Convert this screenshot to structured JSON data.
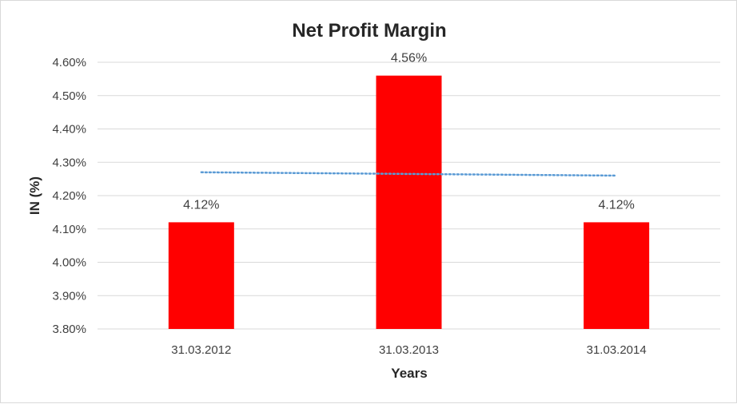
{
  "chart_data": {
    "type": "bar",
    "title": "Net Profit Margin",
    "xlabel": "Years",
    "ylabel": "IN (%)",
    "categories": [
      "31.03.2012",
      "31.03.2013",
      "31.03.2014"
    ],
    "values": [
      4.12,
      4.56,
      4.12
    ],
    "data_labels": [
      "4.12%",
      "4.56%",
      "4.12%"
    ],
    "ylim": [
      3.8,
      4.6
    ],
    "yticks": [
      3.8,
      3.9,
      4.0,
      4.1,
      4.2,
      4.3,
      4.4,
      4.5,
      4.6
    ],
    "ytick_labels": [
      "3.80%",
      "3.90%",
      "4.00%",
      "4.10%",
      "4.20%",
      "4.30%",
      "4.40%",
      "4.50%",
      "4.60%"
    ],
    "trendline": {
      "type": "linear",
      "style": "dotted",
      "start": 4.27,
      "end": 4.26
    },
    "grid": true,
    "legend": "none",
    "colors": {
      "bar": "#ff0000",
      "trendline": "#5b9bd5",
      "grid": "#d9d9d9"
    }
  }
}
